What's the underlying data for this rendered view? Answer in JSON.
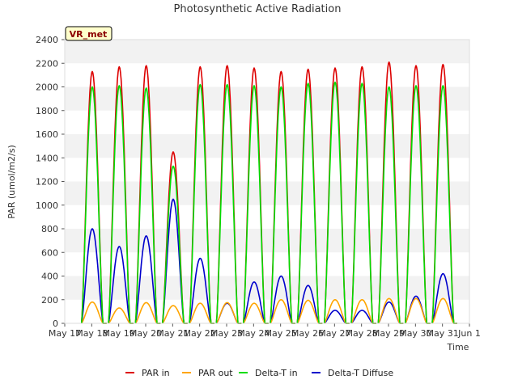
{
  "chart_data": {
    "type": "line",
    "title": "Photosynthetic Active Radiation",
    "xlabel": "Time",
    "ylabel": "PAR (umol/m2/s)",
    "ylim": [
      0,
      2400
    ],
    "yticks": [
      0,
      200,
      400,
      600,
      800,
      1000,
      1200,
      1400,
      1600,
      1800,
      2000,
      2200,
      2400
    ],
    "xlim": [
      0,
      15
    ],
    "xtick_labels": [
      "May 17",
      "May 18",
      "May 19",
      "May 20",
      "May 21",
      "May 22",
      "May 23",
      "May 24",
      "May 25",
      "May 26",
      "May 27",
      "May 28",
      "May 29",
      "May 30",
      "May 31",
      "Jun 1"
    ],
    "grid": "horizontal bands",
    "legend_position": "bottom",
    "annotation": "VR_met",
    "days": [
      "May 18",
      "May 19",
      "May 20",
      "May 21",
      "May 22",
      "May 23",
      "May 24",
      "May 25",
      "May 26",
      "May 27",
      "May 28",
      "May 29",
      "May 30",
      "May 31"
    ],
    "series": [
      {
        "name": "PAR in",
        "color": "#dd0000",
        "daily_peak": [
          2130,
          2170,
          2180,
          1450,
          2170,
          2180,
          2160,
          2130,
          2150,
          2160,
          2170,
          2210,
          2180,
          2190
        ]
      },
      {
        "name": "PAR out",
        "color": "#ffa500",
        "daily_peak": [
          180,
          130,
          175,
          150,
          170,
          175,
          170,
          200,
          195,
          200,
          200,
          210,
          210,
          210
        ]
      },
      {
        "name": "Delta-T in",
        "color": "#00dd00",
        "daily_peak": [
          2000,
          2010,
          1990,
          1330,
          2020,
          2020,
          2010,
          2000,
          2030,
          2040,
          2030,
          2000,
          2010,
          2010
        ]
      },
      {
        "name": "Delta-T Diffuse",
        "color": "#0000cc",
        "daily_peak": [
          800,
          650,
          740,
          1050,
          550,
          170,
          350,
          400,
          320,
          110,
          110,
          180,
          230,
          420
        ]
      }
    ]
  }
}
